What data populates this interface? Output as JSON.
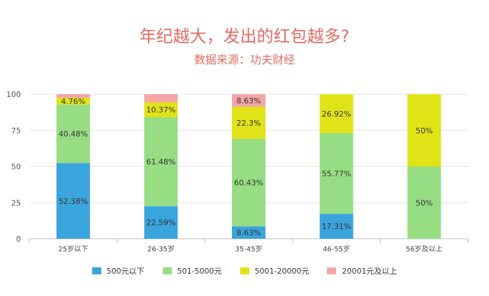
{
  "title": "年纪越大，发出的红包越多?",
  "subtitle": "数据来源：功夫财经",
  "chart_data": {
    "type": "bar",
    "stacked": true,
    "categories": [
      "25岁以下",
      "26-35岁",
      "35-45岁",
      "46-55岁",
      "56岁及以上"
    ],
    "series": [
      {
        "name": "500元以下",
        "color": "#3aa4dc",
        "values": [
          52.38,
          22.59,
          8.63,
          17.31,
          0
        ],
        "labels": [
          "52.38%",
          "22.59%",
          "8.63%",
          "17.31%",
          ""
        ]
      },
      {
        "name": "501-5000元",
        "color": "#97dd83",
        "values": [
          40.48,
          61.48,
          60.43,
          55.77,
          50
        ],
        "labels": [
          "40.48%",
          "61.48%",
          "60.43%",
          "55.77%",
          "50%"
        ]
      },
      {
        "name": "5001-20000元",
        "color": "#e0e317",
        "values": [
          4.76,
          10.37,
          22.3,
          26.92,
          50
        ],
        "labels": [
          "4.76%",
          "10.37%",
          "22.3%",
          "26.92%",
          "50%"
        ]
      },
      {
        "name": "20001元及以上",
        "color": "#f4a6a6",
        "values": [
          2.38,
          5.56,
          8.63,
          0,
          0
        ],
        "labels": [
          "",
          "",
          "8.63%",
          "",
          ""
        ]
      }
    ],
    "y_ticks": [
      "0",
      "25",
      "50",
      "75",
      "100"
    ],
    "ylim": [
      0,
      100
    ],
    "grid": true,
    "legend_position": "bottom"
  }
}
